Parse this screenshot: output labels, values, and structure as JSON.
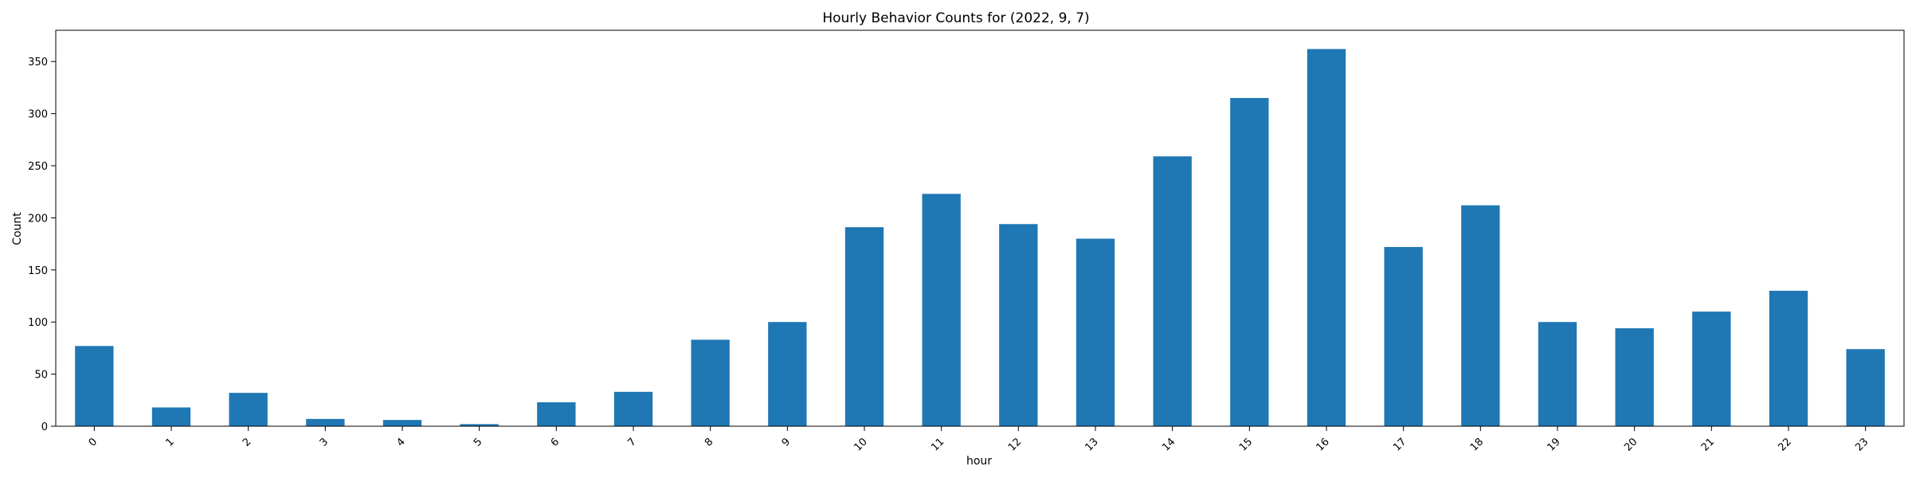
{
  "chart_data": {
    "type": "bar",
    "title": "Hourly Behavior Counts for (2022, 9, 7)",
    "xlabel": "hour",
    "ylabel": "Count",
    "categories": [
      "0",
      "1",
      "2",
      "3",
      "4",
      "5",
      "6",
      "7",
      "8",
      "9",
      "10",
      "11",
      "12",
      "13",
      "14",
      "15",
      "16",
      "17",
      "18",
      "19",
      "20",
      "21",
      "22",
      "23"
    ],
    "values": [
      77,
      18,
      32,
      7,
      6,
      2,
      23,
      33,
      83,
      100,
      191,
      223,
      194,
      180,
      259,
      315,
      362,
      172,
      212,
      100,
      94,
      110,
      130,
      74
    ],
    "ylim": [
      0,
      380
    ],
    "yticks": [
      0,
      50,
      100,
      150,
      200,
      250,
      300,
      350
    ],
    "bar_color": "#1f77b4",
    "grid": false,
    "legend": "none"
  }
}
